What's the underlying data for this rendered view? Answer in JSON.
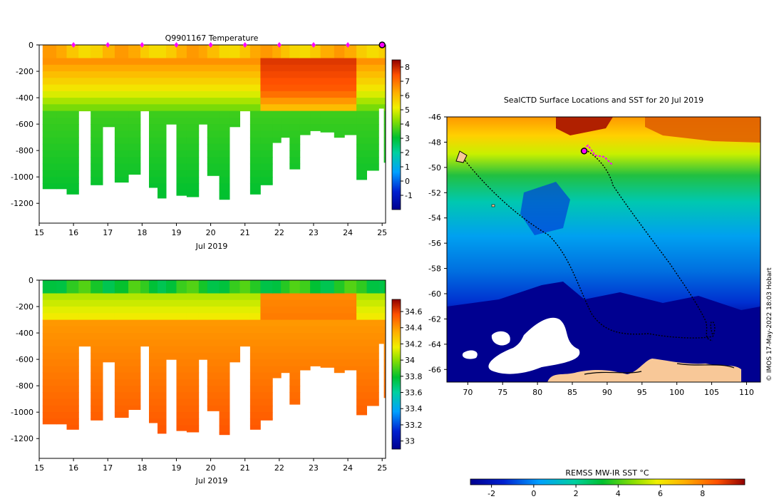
{
  "chart_data": [
    {
      "type": "heatmap",
      "title": "Q9901167  Temperature",
      "xlabel": "Jul 2019",
      "ylabel": "",
      "xlim": [
        15,
        25.1
      ],
      "ylim": [
        -1350,
        0
      ],
      "x_ticks": [
        "15",
        "16",
        "17",
        "18",
        "19",
        "20",
        "21",
        "22",
        "23",
        "24",
        "25"
      ],
      "y_ticks": [
        "0",
        "-200",
        "-400",
        "-600",
        "-800",
        "-1000",
        "-1200"
      ],
      "colorbar": {
        "min": -2,
        "max": 8.5,
        "ticks": [
          "-1",
          "0",
          "1",
          "2",
          "3",
          "4",
          "5",
          "6",
          "7",
          "8"
        ]
      },
      "surface_markers_day": [
        16,
        17,
        18,
        19,
        20,
        21,
        22,
        23,
        24
      ],
      "current_marker_day": 25,
      "profiles": [
        {
          "day": 15.1,
          "depth": 1090
        },
        {
          "day": 15.5,
          "depth": 1090
        },
        {
          "day": 15.8,
          "depth": 1130
        },
        {
          "day": 16.15,
          "depth": 500
        },
        {
          "day": 16.5,
          "depth": 1060
        },
        {
          "day": 16.85,
          "depth": 620
        },
        {
          "day": 17.2,
          "depth": 1040
        },
        {
          "day": 17.6,
          "depth": 980
        },
        {
          "day": 17.95,
          "depth": 500
        },
        {
          "day": 18.2,
          "depth": 1080
        },
        {
          "day": 18.45,
          "depth": 1160
        },
        {
          "day": 18.7,
          "depth": 600
        },
        {
          "day": 19.0,
          "depth": 1140
        },
        {
          "day": 19.3,
          "depth": 1150
        },
        {
          "day": 19.65,
          "depth": 600
        },
        {
          "day": 19.9,
          "depth": 990
        },
        {
          "day": 20.25,
          "depth": 1170
        },
        {
          "day": 20.55,
          "depth": 620
        },
        {
          "day": 20.85,
          "depth": 500
        },
        {
          "day": 21.15,
          "depth": 1130
        },
        {
          "day": 21.45,
          "depth": 1060
        },
        {
          "day": 21.8,
          "depth": 740
        },
        {
          "day": 22.05,
          "depth": 700
        },
        {
          "day": 22.3,
          "depth": 940
        },
        {
          "day": 22.6,
          "depth": 680
        },
        {
          "day": 22.9,
          "depth": 650
        },
        {
          "day": 23.2,
          "depth": 660
        },
        {
          "day": 23.6,
          "depth": 700
        },
        {
          "day": 23.9,
          "depth": 680
        },
        {
          "day": 24.25,
          "depth": 1020
        },
        {
          "day": 24.55,
          "depth": 950
        },
        {
          "day": 24.9,
          "depth": 480
        },
        {
          "day": 25.05,
          "depth": 890
        }
      ]
    },
    {
      "type": "heatmap",
      "title": "",
      "xlabel": "Jul 2019",
      "ylabel": "",
      "xlim": [
        15,
        25.1
      ],
      "ylim": [
        -1350,
        0
      ],
      "x_ticks": [
        "15",
        "16",
        "17",
        "18",
        "19",
        "20",
        "21",
        "22",
        "23",
        "24",
        "25"
      ],
      "y_ticks": [
        "0",
        "-200",
        "-400",
        "-600",
        "-800",
        "-1000",
        "-1200"
      ],
      "colorbar": {
        "min": 32.9,
        "max": 34.75,
        "ticks": [
          "33",
          "33.2",
          "33.4",
          "33.6",
          "33.8",
          "34",
          "34.2",
          "34.4",
          "34.6"
        ]
      }
    },
    {
      "type": "heatmap",
      "title": "SealCTD Surface Locations and SST for 20 Jul 2019",
      "xlabel": "",
      "ylabel": "",
      "xlim": [
        67,
        112
      ],
      "ylim": [
        -67,
        -46
      ],
      "x_ticks": [
        "70",
        "75",
        "80",
        "85",
        "90",
        "95",
        "100",
        "105",
        "110"
      ],
      "y_ticks": [
        "-46",
        "-48",
        "-50",
        "-52",
        "-54",
        "-56",
        "-58",
        "-60",
        "-62",
        "-64",
        "-66"
      ],
      "current_position": [
        86.7,
        -48.7
      ],
      "colorbar": {
        "label": "REMSS MW-IR SST °C",
        "min": -3,
        "max": 10,
        "ticks": [
          "-2",
          "0",
          "2",
          "4",
          "6",
          "8"
        ]
      },
      "credit": "© IMOS 17-May-2022 18:03 Hobart"
    }
  ]
}
